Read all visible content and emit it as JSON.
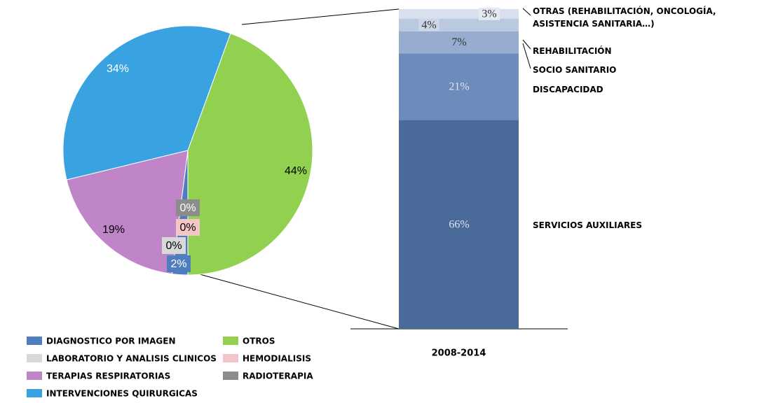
{
  "chart_data": [
    {
      "type": "pie",
      "labels": [
        "DIAGNOSTICO POR IMAGEN",
        "LABORATORIO Y ANALISIS CLINICOS",
        "TERAPIAS RESPIRATORIAS",
        "INTERVENCIONES QUIRURGICAS",
        "OTROS",
        "HEMODIALISIS",
        "RADIOTERAPIA"
      ],
      "values": [
        2,
        0,
        19,
        34,
        44,
        0,
        0
      ],
      "value_labels": [
        "2%",
        "0%",
        "19%",
        "34%",
        "44%",
        "0%",
        "0%"
      ],
      "colors": [
        "#4f7ec0",
        "#d9d9d9",
        "#c084c8",
        "#38a3e0",
        "#92d050",
        "#f4c6c6",
        "#8c8c8c"
      ]
    },
    {
      "type": "bar",
      "categories": [
        "2008-2014"
      ],
      "series": [
        {
          "name": "SERVICIOS AUXILIARES",
          "color": "#4a6b9a",
          "values": [
            66
          ],
          "value_labels": [
            "66%"
          ]
        },
        {
          "name": "DISCAPACIDAD",
          "color": "#6d8cbb",
          "values": [
            21
          ],
          "value_labels": [
            "21%"
          ]
        },
        {
          "name": "SOCIO SANITARIO",
          "color": "#98acd0",
          "values": [
            7
          ],
          "value_labels": [
            "7%"
          ]
        },
        {
          "name": "REHABILITACIÓN",
          "color": "#bac8e0",
          "values": [
            4
          ],
          "value_labels": [
            "4%"
          ]
        },
        {
          "name": "OTRAS (REHABILITACIÓN, ONCOLOGÍA, ASISTENCIA SANITARIA…)",
          "color": "#d8e0ee",
          "values": [
            3
          ],
          "value_labels": [
            "3%"
          ]
        }
      ]
    }
  ]
}
